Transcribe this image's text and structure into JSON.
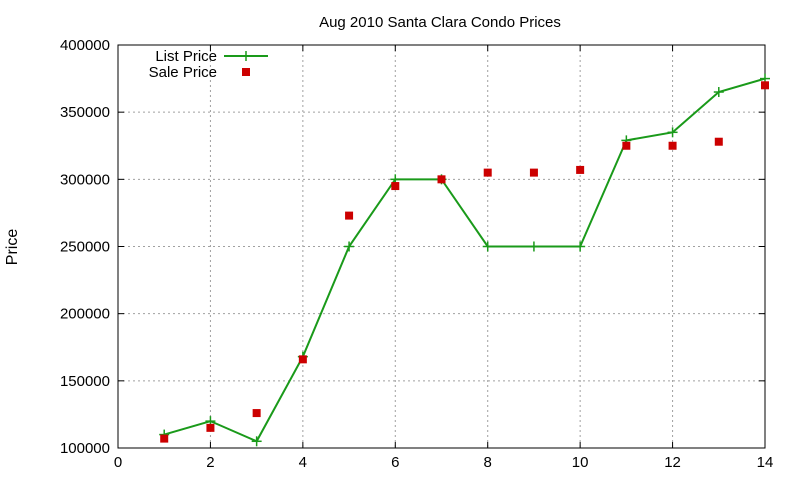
{
  "chart_data": {
    "type": "line",
    "title": "Aug 2010 Santa Clara Condo Prices",
    "xlabel": "",
    "ylabel": "Price",
    "xlim": [
      0,
      14
    ],
    "ylim": [
      100000,
      400000
    ],
    "x_ticks": [
      0,
      2,
      4,
      6,
      8,
      10,
      12,
      14
    ],
    "y_ticks": [
      100000,
      150000,
      200000,
      250000,
      300000,
      350000,
      400000
    ],
    "grid": true,
    "legend_position": "top-left",
    "series": [
      {
        "name": "List Price",
        "style": "line-points",
        "color": "#1a9a1a",
        "x": [
          1,
          2,
          3,
          4,
          5,
          6,
          7,
          8,
          9,
          10,
          11,
          12,
          13,
          14
        ],
        "y": [
          110000,
          120000,
          105000,
          168000,
          250000,
          300000,
          300000,
          250000,
          250000,
          250000,
          329000,
          335000,
          365000,
          375000
        ]
      },
      {
        "name": "Sale Price",
        "style": "points",
        "color": "#cc0000",
        "x": [
          1,
          2,
          3,
          4,
          5,
          6,
          7,
          8,
          9,
          10,
          11,
          12,
          13,
          14
        ],
        "y": [
          107000,
          115000,
          126000,
          166000,
          273000,
          295000,
          300000,
          305000,
          305000,
          307000,
          325000,
          325000,
          328000,
          370000
        ]
      }
    ]
  }
}
